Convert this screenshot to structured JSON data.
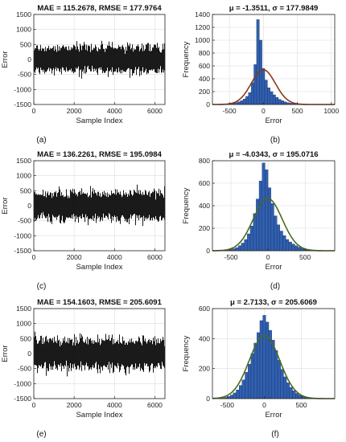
{
  "chart_data": [
    {
      "type": "line",
      "panel_label": "(a)",
      "title": "MAE = 115.2678, RMSE = 177.9764",
      "xlabel": "Sample Index",
      "ylabel": "Error",
      "xlim": [
        0,
        6500
      ],
      "ylim": [
        -1500,
        1500
      ],
      "xticks": [
        0,
        2000,
        4000,
        6000
      ],
      "yticks": [
        -1500,
        -1000,
        -500,
        0,
        500,
        1000,
        1500
      ],
      "grid": true,
      "series": [
        {
          "color": "#000000",
          "n_samples": 6500,
          "sigma": 178,
          "mean": 0,
          "peak_max": 1000,
          "peak_min": -640
        }
      ]
    },
    {
      "type": "bar",
      "panel_label": "(b)",
      "title": "μ = -1.3511, σ = 177.9849",
      "xlabel": "Error",
      "ylabel": "Frequency",
      "xlim": [
        -750,
        1050
      ],
      "ylim": [
        0,
        1400
      ],
      "xticks": [
        -500,
        0,
        500,
        1000
      ],
      "yticks": [
        0,
        200,
        400,
        600,
        800,
        1000,
        1200,
        1400
      ],
      "grid": true,
      "bin_start": -620,
      "bin_width": 40,
      "values": [
        3,
        5,
        8,
        12,
        18,
        28,
        40,
        58,
        85,
        125,
        185,
        340,
        620,
        1320,
        1000,
        560,
        380,
        260,
        200,
        150,
        110,
        80,
        58,
        40,
        28,
        20,
        14,
        10,
        7,
        5,
        4,
        3,
        2,
        1,
        1
      ],
      "fit": {
        "mu": -1.3511,
        "sigma": 177.9849,
        "peak": 540
      },
      "colors": {
        "bars": "#2f5fb0",
        "fit": "#8a3a1a"
      }
    },
    {
      "type": "line",
      "panel_label": "(c)",
      "title": "MAE = 136.2261, RMSE = 195.0984",
      "xlabel": "Sample Index",
      "ylabel": "Error",
      "xlim": [
        0,
        6500
      ],
      "ylim": [
        -1500,
        1500
      ],
      "xticks": [
        0,
        2000,
        4000,
        6000
      ],
      "yticks": [
        -1500,
        -1000,
        -500,
        0,
        500,
        1000,
        1500
      ],
      "grid": true,
      "series": [
        {
          "color": "#000000",
          "n_samples": 6500,
          "sigma": 195,
          "mean": 0,
          "peak_max": 1050,
          "peak_min": -720
        }
      ]
    },
    {
      "type": "bar",
      "panel_label": "(d)",
      "title": "μ = -4.0343, σ = 195.0716",
      "xlabel": "Error",
      "ylabel": "Frequency",
      "xlim": [
        -750,
        900
      ],
      "ylim": [
        0,
        800
      ],
      "xticks": [
        -500,
        0,
        500
      ],
      "yticks": [
        0,
        200,
        400,
        600,
        800
      ],
      "grid": true,
      "bin_start": -640,
      "bin_width": 40,
      "values": [
        2,
        4,
        6,
        10,
        18,
        28,
        45,
        68,
        100,
        150,
        220,
        330,
        460,
        620,
        780,
        720,
        560,
        420,
        310,
        230,
        175,
        135,
        100,
        78,
        60,
        45,
        32,
        22,
        15,
        10,
        7,
        5,
        3,
        2
      ],
      "fit": {
        "mu": -4.0343,
        "sigma": 195.0716,
        "peak": 465
      },
      "colors": {
        "bars": "#2f5fb0",
        "fit": "#4a6a20"
      }
    },
    {
      "type": "line",
      "panel_label": "(e)",
      "title": "MAE = 154.1603, RMSE = 205.6091",
      "xlabel": "Sample Index",
      "ylabel": "Error",
      "xlim": [
        0,
        6500
      ],
      "ylim": [
        -1500,
        1500
      ],
      "xticks": [
        0,
        2000,
        4000,
        6000
      ],
      "yticks": [
        -1500,
        -1000,
        -500,
        0,
        500,
        1000,
        1500
      ],
      "grid": true,
      "series": [
        {
          "color": "#000000",
          "n_samples": 6500,
          "sigma": 205,
          "mean": 0,
          "peak_max": 980,
          "peak_min": -760
        }
      ]
    },
    {
      "type": "bar",
      "panel_label": "(f)",
      "title": "μ = 2.7133, σ = 205.6069",
      "xlabel": "Error",
      "ylabel": "Frequency",
      "xlim": [
        -700,
        950
      ],
      "ylim": [
        0,
        600
      ],
      "xticks": [
        -500,
        0,
        500
      ],
      "yticks": [
        0,
        200,
        400,
        600
      ],
      "grid": true,
      "bin_start": -620,
      "bin_width": 40,
      "values": [
        2,
        4,
        8,
        14,
        24,
        38,
        58,
        88,
        125,
        175,
        230,
        300,
        370,
        440,
        520,
        555,
        510,
        455,
        390,
        320,
        255,
        195,
        145,
        105,
        75,
        52,
        35,
        24,
        16,
        11,
        7,
        4,
        3,
        2
      ],
      "fit": {
        "mu": 2.7133,
        "sigma": 205.6069,
        "peak": 420
      },
      "colors": {
        "bars": "#2f5fb0",
        "fit": "#4a6a20"
      }
    }
  ]
}
